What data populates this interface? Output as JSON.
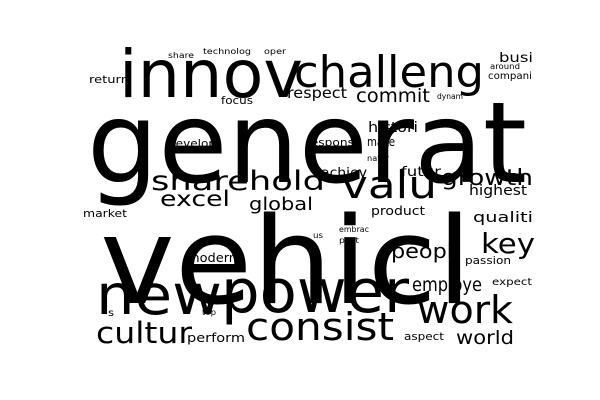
{
  "words": [
    {
      "text": "generat",
      "weight": 1.0
    },
    {
      "text": "vehicl",
      "weight": 0.97
    },
    {
      "text": "innov",
      "weight": 0.62
    },
    {
      "text": "power",
      "weight": 0.6
    },
    {
      "text": "new",
      "weight": 0.55
    },
    {
      "text": "challeng",
      "weight": 0.45
    },
    {
      "text": "consist",
      "weight": 0.42
    },
    {
      "text": "valu",
      "weight": 0.4
    },
    {
      "text": "work",
      "weight": 0.42
    },
    {
      "text": "sharehold",
      "weight": 0.3
    },
    {
      "text": "key",
      "weight": 0.27
    },
    {
      "text": "cultur",
      "weight": 0.28
    },
    {
      "text": "growth",
      "weight": 0.24
    },
    {
      "text": "excel",
      "weight": 0.23
    },
    {
      "text": "global",
      "weight": 0.2
    },
    {
      "text": "peopl",
      "weight": 0.21
    },
    {
      "text": "employe",
      "weight": 0.2
    },
    {
      "text": "commit",
      "weight": 0.2
    },
    {
      "text": "world",
      "weight": 0.2
    },
    {
      "text": "respect",
      "weight": 0.15
    },
    {
      "text": "histori",
      "weight": 0.14
    },
    {
      "text": "highest",
      "weight": 0.14
    },
    {
      "text": "qualiti",
      "weight": 0.14
    },
    {
      "text": "busi",
      "weight": 0.13
    },
    {
      "text": "futur",
      "weight": 0.13
    },
    {
      "text": "achiev",
      "weight": 0.13
    },
    {
      "text": "product",
      "weight": 0.12
    },
    {
      "text": "modern",
      "weight": 0.13
    },
    {
      "text": "perform",
      "weight": 0.13
    },
    {
      "text": "make",
      "weight": 0.11
    },
    {
      "text": "respons",
      "weight": 0.11
    },
    {
      "text": "develop",
      "weight": 0.11
    },
    {
      "text": "return",
      "weight": 0.1
    },
    {
      "text": "market",
      "weight": 0.1
    },
    {
      "text": "focus",
      "weight": 0.1
    },
    {
      "text": "passion",
      "weight": 0.1
    },
    {
      "text": "aspect",
      "weight": 0.1
    },
    {
      "text": "compani",
      "weight": 0.09
    },
    {
      "text": "expect",
      "weight": 0.09
    },
    {
      "text": "technolog",
      "weight": 0.07
    },
    {
      "text": "share",
      "weight": 0.07
    },
    {
      "text": "oper",
      "weight": 0.07
    },
    {
      "text": "around",
      "weight": 0.07
    },
    {
      "text": "dynam",
      "weight": 0.07
    },
    {
      "text": "natur",
      "weight": 0.07
    },
    {
      "text": "embrac",
      "weight": 0.07
    },
    {
      "text": "past",
      "weight": 0.07
    },
    {
      "text": "us",
      "weight": 0.07
    },
    {
      "text": "top",
      "weight": 0.07
    },
    {
      "text": "s",
      "weight": 0.08
    }
  ],
  "colors": {
    "background": "#ffffff",
    "text": "#000000"
  }
}
